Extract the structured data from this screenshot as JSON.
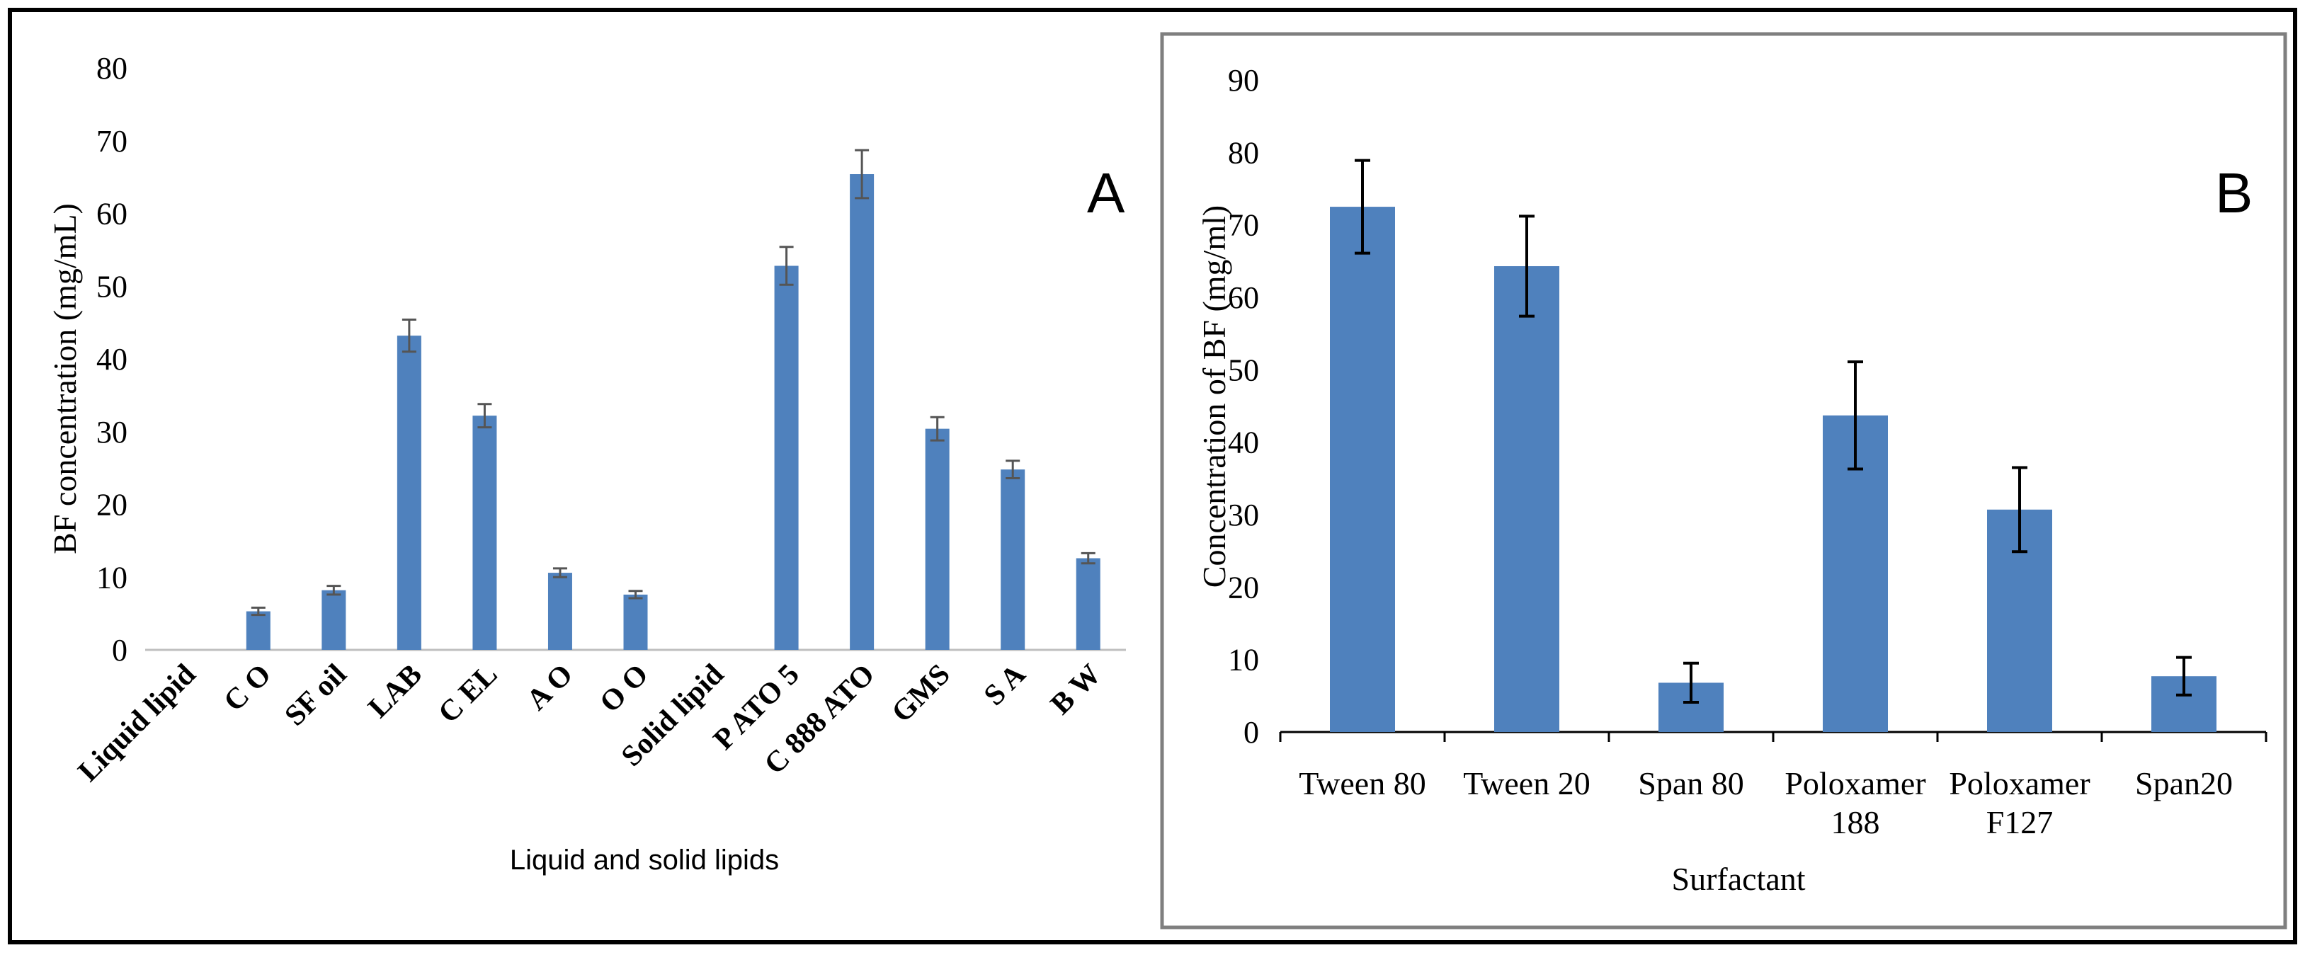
{
  "chart_data": [
    {
      "type": "bar",
      "panel_label": "A",
      "title": "",
      "xlabel": "Liquid and solid lipids",
      "ylabel": "BF concentration (mg/mL)",
      "ylim": [
        0,
        80
      ],
      "yticks": [
        0,
        10,
        20,
        30,
        40,
        50,
        60,
        70,
        80
      ],
      "grid": false,
      "categories": [
        "Liquid lipid",
        "C O",
        "SF oil",
        "LAB",
        "C EL",
        "A O",
        "O O",
        "Solid lipid",
        "P ATO 5",
        "C 888 ATO",
        "GMS",
        "S A",
        "B W"
      ],
      "values": [
        null,
        5.3,
        8.2,
        43.2,
        32.2,
        10.6,
        7.6,
        null,
        52.8,
        65.4,
        30.4,
        24.8,
        12.6
      ],
      "errors": [
        null,
        0.5,
        0.6,
        2.2,
        1.6,
        0.6,
        0.5,
        null,
        2.6,
        3.3,
        1.6,
        1.2,
        0.7
      ],
      "color": "#4f81bd"
    },
    {
      "type": "bar",
      "panel_label": "B",
      "title": "",
      "xlabel": "Surfactant",
      "ylabel": "Concentration of BF (mg/ml)",
      "ylim": [
        0,
        90
      ],
      "yticks": [
        0,
        10,
        20,
        30,
        40,
        50,
        60,
        70,
        80,
        90
      ],
      "grid": false,
      "categories": [
        [
          "Tween 80"
        ],
        [
          "Tween 20"
        ],
        [
          "Span 80"
        ],
        [
          "Poloxamer",
          "188"
        ],
        [
          "Poloxamer",
          "F127"
        ],
        [
          "Span20"
        ]
      ],
      "values": [
        72.5,
        64.3,
        6.8,
        43.7,
        30.7,
        7.7
      ],
      "errors": [
        6.4,
        6.9,
        2.7,
        7.4,
        5.8,
        2.6
      ],
      "color": "#4f81bd"
    }
  ]
}
